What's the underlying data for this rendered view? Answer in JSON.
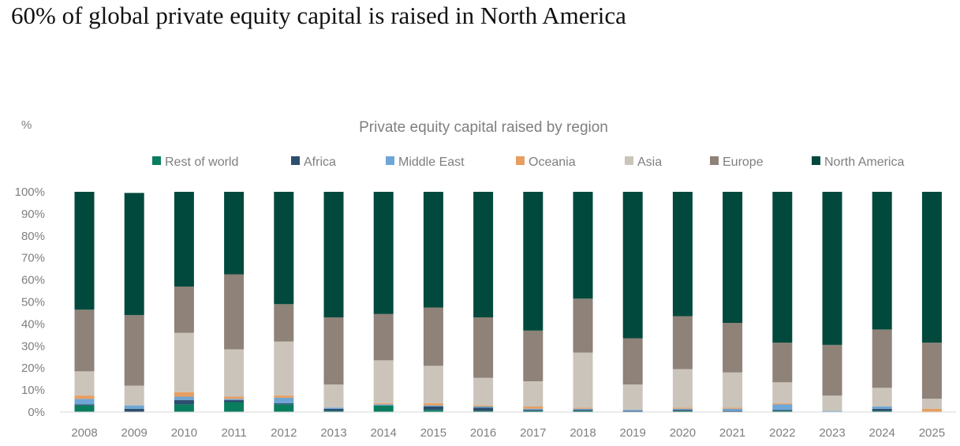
{
  "headline": "60% of global private equity capital is raised in North America",
  "chart_data": {
    "type": "bar",
    "stacked": true,
    "title": "Private equity capital raised by region",
    "unit_label": "%",
    "ylim": [
      0,
      100
    ],
    "yticks": [
      "0%",
      "10%",
      "20%",
      "30%",
      "40%",
      "50%",
      "60%",
      "70%",
      "80%",
      "90%",
      "100%"
    ],
    "grid": false,
    "legend_position": "top",
    "categories": [
      "2008",
      "2009",
      "2010",
      "2011",
      "2012",
      "2013",
      "2014",
      "2015",
      "2016",
      "2017",
      "2018",
      "2019",
      "2020",
      "2021",
      "2022",
      "2023",
      "2024",
      "2025"
    ],
    "series": [
      {
        "name": "Rest of world",
        "color": "#0a7d5e",
        "values": [
          3,
          0,
          3.5,
          4.5,
          3.5,
          0.5,
          3,
          1,
          0.5,
          0.5,
          0.5,
          0,
          0.5,
          0,
          0.5,
          0,
          0.5,
          0
        ]
      },
      {
        "name": "Africa",
        "color": "#2e4e6e",
        "values": [
          0.5,
          1.5,
          2,
          1,
          0.5,
          1,
          0,
          1.5,
          1.5,
          0.5,
          0.5,
          0.5,
          0.5,
          0.5,
          0.5,
          0,
          1,
          0
        ]
      },
      {
        "name": "Middle East",
        "color": "#6ea6d6",
        "values": [
          2.5,
          1.5,
          1.5,
          0.5,
          2.5,
          0.5,
          0.5,
          0.5,
          0.5,
          0.5,
          0.5,
          0.5,
          0.5,
          1,
          2.5,
          0.5,
          1,
          0
        ]
      },
      {
        "name": "Oceania",
        "color": "#e89e60",
        "values": [
          1.5,
          0,
          2,
          1,
          1,
          0,
          0.5,
          1,
          0.5,
          1,
          0.5,
          0,
          0.5,
          0.5,
          0.5,
          0,
          0,
          1.5
        ]
      },
      {
        "name": "Asia",
        "color": "#cbc4ba",
        "values": [
          11,
          9,
          27,
          21.5,
          24.5,
          10.5,
          19.5,
          17,
          12.5,
          11.5,
          25,
          11.5,
          17.5,
          16,
          9.5,
          7,
          8.5,
          4.5
        ]
      },
      {
        "name": "Europe",
        "color": "#8e8279",
        "values": [
          28,
          32,
          21,
          34,
          17,
          30.5,
          21,
          26.5,
          27.5,
          23,
          24.5,
          21,
          24,
          22.5,
          18,
          23,
          26.5,
          25.5
        ]
      },
      {
        "name": "North America",
        "color": "#01493c",
        "values": [
          53.5,
          55.5,
          43,
          37.5,
          51,
          57,
          55.5,
          52.5,
          57,
          63,
          48.5,
          66.5,
          56.5,
          59.5,
          68.5,
          69.5,
          62.5,
          68.5
        ]
      }
    ]
  }
}
